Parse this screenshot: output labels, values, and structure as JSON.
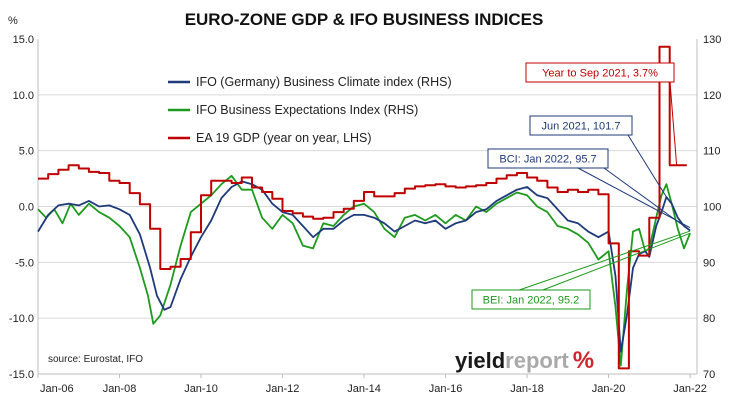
{
  "chart_data": {
    "type": "line",
    "title": "EURO-ZONE GDP & IFO BUSINESS INDICES",
    "left_axis_unit": "%",
    "ylim_left": [
      -15,
      15
    ],
    "ylim_right": [
      70,
      130
    ],
    "left_ticks": [
      "15.0",
      "10.0",
      "5.0",
      "0.0",
      "-5.0",
      "-10.0",
      "-15.0"
    ],
    "right_ticks": [
      "130",
      "120",
      "110",
      "100",
      "90",
      "80",
      "70"
    ],
    "x_ticks": [
      "Jan-06",
      "Jan-08",
      "Jan-10",
      "Jan-12",
      "Jan-14",
      "Jan-16",
      "Jan-18",
      "Jan-20",
      "Jan-22"
    ],
    "xlim": [
      2006.0,
      2022.17
    ],
    "grid": "horizontal",
    "colors": {
      "bci": "#1f3a7a",
      "bei": "#1e9a1e",
      "gdp": "#c00000"
    },
    "series": [
      {
        "name": "IFO (Germany) Business Climate index (RHS)",
        "axis": "right",
        "points": [
          [
            2006.0,
            95.5
          ],
          [
            2006.25,
            98.5
          ],
          [
            2006.5,
            100.2
          ],
          [
            2006.75,
            100.5
          ],
          [
            2007.0,
            100.2
          ],
          [
            2007.25,
            101.0
          ],
          [
            2007.5,
            100.0
          ],
          [
            2007.75,
            100.2
          ],
          [
            2008.0,
            99.5
          ],
          [
            2008.25,
            98.5
          ],
          [
            2008.5,
            95.0
          ],
          [
            2008.75,
            89.0
          ],
          [
            2008.92,
            84.0
          ],
          [
            2009.1,
            81.5
          ],
          [
            2009.25,
            82.0
          ],
          [
            2009.5,
            87.0
          ],
          [
            2009.75,
            91.0
          ],
          [
            2010.0,
            94.5
          ],
          [
            2010.25,
            97.5
          ],
          [
            2010.5,
            101.5
          ],
          [
            2010.75,
            103.5
          ],
          [
            2011.0,
            104.5
          ],
          [
            2011.25,
            104.0
          ],
          [
            2011.5,
            103.0
          ],
          [
            2011.75,
            100.5
          ],
          [
            2012.0,
            99.0
          ],
          [
            2012.25,
            98.5
          ],
          [
            2012.5,
            96.5
          ],
          [
            2012.75,
            94.5
          ],
          [
            2013.0,
            96.0
          ],
          [
            2013.25,
            96.0
          ],
          [
            2013.5,
            97.5
          ],
          [
            2013.75,
            98.5
          ],
          [
            2014.0,
            98.5
          ],
          [
            2014.25,
            98.0
          ],
          [
            2014.5,
            97.0
          ],
          [
            2014.75,
            95.5
          ],
          [
            2015.0,
            96.5
          ],
          [
            2015.25,
            97.5
          ],
          [
            2015.5,
            97.0
          ],
          [
            2015.75,
            97.5
          ],
          [
            2016.0,
            96.0
          ],
          [
            2016.25,
            97.0
          ],
          [
            2016.5,
            97.5
          ],
          [
            2016.75,
            99.0
          ],
          [
            2017.0,
            99.5
          ],
          [
            2017.25,
            101.0
          ],
          [
            2017.5,
            102.0
          ],
          [
            2017.75,
            103.0
          ],
          [
            2018.0,
            103.5
          ],
          [
            2018.25,
            102.0
          ],
          [
            2018.5,
            101.5
          ],
          [
            2018.75,
            99.5
          ],
          [
            2019.0,
            97.5
          ],
          [
            2019.25,
            97.0
          ],
          [
            2019.5,
            95.5
          ],
          [
            2019.75,
            94.5
          ],
          [
            2020.0,
            95.5
          ],
          [
            2020.17,
            87.5
          ],
          [
            2020.3,
            74.0
          ],
          [
            2020.45,
            80.5
          ],
          [
            2020.6,
            89.0
          ],
          [
            2020.75,
            91.5
          ],
          [
            2020.9,
            92.0
          ],
          [
            2021.0,
            91.0
          ],
          [
            2021.17,
            96.5
          ],
          [
            2021.3,
            99.0
          ],
          [
            2021.42,
            101.7
          ],
          [
            2021.55,
            100.5
          ],
          [
            2021.7,
            98.0
          ],
          [
            2021.85,
            96.5
          ],
          [
            2022.0,
            95.7
          ]
        ]
      },
      {
        "name": "IFO Business Expectations Index (RHS)",
        "axis": "right",
        "points": [
          [
            2006.0,
            99.5
          ],
          [
            2006.2,
            98.0
          ],
          [
            2006.4,
            99.5
          ],
          [
            2006.6,
            97.0
          ],
          [
            2006.8,
            100.5
          ],
          [
            2007.0,
            98.5
          ],
          [
            2007.25,
            100.5
          ],
          [
            2007.5,
            99.0
          ],
          [
            2007.75,
            98.0
          ],
          [
            2008.0,
            96.5
          ],
          [
            2008.25,
            94.5
          ],
          [
            2008.5,
            89.0
          ],
          [
            2008.7,
            84.0
          ],
          [
            2008.83,
            79.0
          ],
          [
            2009.0,
            80.5
          ],
          [
            2009.25,
            86.0
          ],
          [
            2009.5,
            93.0
          ],
          [
            2009.75,
            99.0
          ],
          [
            2010.0,
            100.5
          ],
          [
            2010.25,
            102.0
          ],
          [
            2010.5,
            104.0
          ],
          [
            2010.75,
            105.5
          ],
          [
            2011.0,
            103.0
          ],
          [
            2011.25,
            103.0
          ],
          [
            2011.5,
            98.0
          ],
          [
            2011.75,
            96.0
          ],
          [
            2012.0,
            98.5
          ],
          [
            2012.25,
            97.0
          ],
          [
            2012.5,
            93.0
          ],
          [
            2012.75,
            92.5
          ],
          [
            2013.0,
            97.0
          ],
          [
            2013.25,
            96.5
          ],
          [
            2013.5,
            98.5
          ],
          [
            2013.75,
            100.0
          ],
          [
            2014.0,
            100.5
          ],
          [
            2014.25,
            99.0
          ],
          [
            2014.5,
            96.0
          ],
          [
            2014.75,
            94.5
          ],
          [
            2015.0,
            98.0
          ],
          [
            2015.25,
            98.5
          ],
          [
            2015.5,
            97.5
          ],
          [
            2015.75,
            98.5
          ],
          [
            2016.0,
            97.0
          ],
          [
            2016.25,
            98.5
          ],
          [
            2016.5,
            97.5
          ],
          [
            2016.75,
            100.0
          ],
          [
            2017.0,
            99.0
          ],
          [
            2017.25,
            100.5
          ],
          [
            2017.5,
            101.5
          ],
          [
            2017.75,
            102.5
          ],
          [
            2018.0,
            102.0
          ],
          [
            2018.25,
            100.0
          ],
          [
            2018.5,
            99.0
          ],
          [
            2018.75,
            96.5
          ],
          [
            2019.0,
            96.0
          ],
          [
            2019.25,
            95.0
          ],
          [
            2019.5,
            93.5
          ],
          [
            2019.75,
            90.5
          ],
          [
            2020.0,
            92.0
          ],
          [
            2020.17,
            82.0
          ],
          [
            2020.3,
            71.5
          ],
          [
            2020.45,
            85.0
          ],
          [
            2020.6,
            95.5
          ],
          [
            2020.75,
            96.0
          ],
          [
            2020.9,
            92.0
          ],
          [
            2021.0,
            92.5
          ],
          [
            2021.17,
            98.0
          ],
          [
            2021.3,
            102.0
          ],
          [
            2021.42,
            104.0
          ],
          [
            2021.55,
            100.5
          ],
          [
            2021.7,
            96.0
          ],
          [
            2021.85,
            92.5
          ],
          [
            2022.0,
            95.2
          ]
        ]
      },
      {
        "name": "EA 19 GDP (year on year, LHS)",
        "axis": "left",
        "step": true,
        "points": [
          [
            2006.0,
            2.5
          ],
          [
            2006.25,
            2.9
          ],
          [
            2006.5,
            3.3
          ],
          [
            2006.75,
            3.7
          ],
          [
            2007.0,
            3.4
          ],
          [
            2007.25,
            3.1
          ],
          [
            2007.5,
            3.0
          ],
          [
            2007.75,
            2.3
          ],
          [
            2008.0,
            2.1
          ],
          [
            2008.25,
            1.2
          ],
          [
            2008.5,
            0.2
          ],
          [
            2008.75,
            -2.0
          ],
          [
            2009.0,
            -5.6
          ],
          [
            2009.25,
            -5.4
          ],
          [
            2009.5,
            -4.7
          ],
          [
            2009.75,
            -2.3
          ],
          [
            2010.0,
            1.0
          ],
          [
            2010.25,
            2.3
          ],
          [
            2010.5,
            2.3
          ],
          [
            2010.75,
            2.1
          ],
          [
            2011.0,
            2.6
          ],
          [
            2011.25,
            1.7
          ],
          [
            2011.5,
            1.3
          ],
          [
            2011.75,
            0.7
          ],
          [
            2012.0,
            -0.4
          ],
          [
            2012.25,
            -0.6
          ],
          [
            2012.5,
            -0.9
          ],
          [
            2012.75,
            -1.1
          ],
          [
            2013.0,
            -1.0
          ],
          [
            2013.25,
            -0.5
          ],
          [
            2013.5,
            -0.2
          ],
          [
            2013.75,
            0.5
          ],
          [
            2014.0,
            1.3
          ],
          [
            2014.25,
            0.9
          ],
          [
            2014.5,
            0.9
          ],
          [
            2014.75,
            1.2
          ],
          [
            2015.0,
            1.6
          ],
          [
            2015.25,
            1.8
          ],
          [
            2015.5,
            1.9
          ],
          [
            2015.75,
            2.0
          ],
          [
            2016.0,
            1.8
          ],
          [
            2016.25,
            1.7
          ],
          [
            2016.5,
            1.8
          ],
          [
            2016.75,
            1.9
          ],
          [
            2017.0,
            2.1
          ],
          [
            2017.25,
            2.5
          ],
          [
            2017.5,
            2.8
          ],
          [
            2017.75,
            3.0
          ],
          [
            2018.0,
            2.6
          ],
          [
            2018.25,
            2.3
          ],
          [
            2018.5,
            1.7
          ],
          [
            2018.75,
            1.3
          ],
          [
            2019.0,
            1.5
          ],
          [
            2019.25,
            1.3
          ],
          [
            2019.5,
            1.5
          ],
          [
            2019.75,
            1.1
          ],
          [
            2020.0,
            -3.3
          ],
          [
            2020.25,
            -14.5
          ],
          [
            2020.5,
            -4.0
          ],
          [
            2020.75,
            -4.4
          ],
          [
            2021.0,
            -1.0
          ],
          [
            2021.25,
            14.3
          ],
          [
            2021.5,
            3.7
          ],
          [
            2021.75,
            3.7
          ],
          [
            2021.92,
            3.7
          ]
        ]
      }
    ],
    "annotations": [
      {
        "text": "Year to Sep 2021, 3.7%",
        "color": "#c00000",
        "series": "gdp",
        "x": 2021.67,
        "y": 3.7
      },
      {
        "text": "Jun 2021, 101.7",
        "color": "#1f3a7a",
        "series": "bci",
        "x": 2021.42,
        "y": 101.7
      },
      {
        "text": "BCI: Jan 2022, 95.7",
        "color": "#1f3a7a",
        "series": "bci",
        "x": 2022.0,
        "y": 95.7
      },
      {
        "text": "BEI: Jan 2022, 95.2",
        "color": "#1e9a1e",
        "series": "bei",
        "x": 2022.0,
        "y": 95.2
      }
    ],
    "source": "source: Eurostat, IFO",
    "brand": {
      "part1": "yield",
      "part2": "report",
      "part3": "%"
    }
  }
}
